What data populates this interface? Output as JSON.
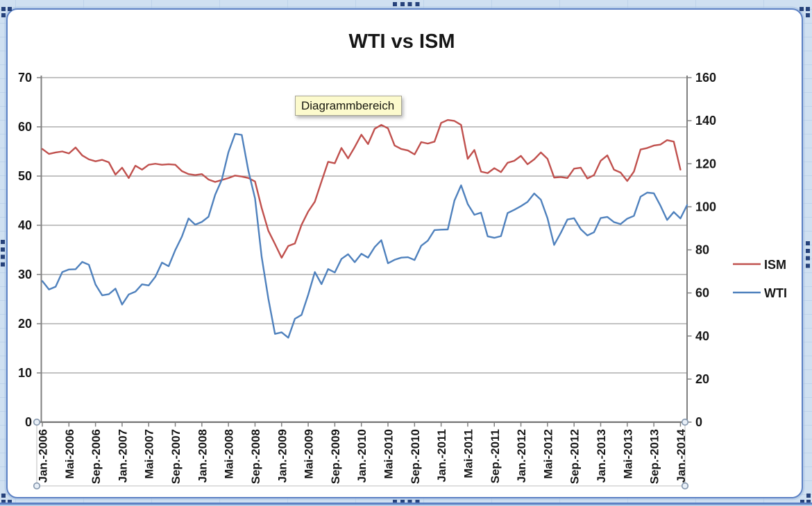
{
  "tooltip": {
    "text": "Diagrammbereich"
  },
  "chart_data": {
    "type": "line",
    "title": "WTI vs ISM",
    "legend": {
      "position": "right",
      "entries": [
        {
          "label": "ISM",
          "color": "#C0504D"
        },
        {
          "label": "WTI",
          "color": "#4F81BD"
        }
      ]
    },
    "left_axis": {
      "min": 0,
      "max": 70,
      "step": 10,
      "tick_labels": [
        "0",
        "10",
        "20",
        "30",
        "40",
        "50",
        "60",
        "70"
      ]
    },
    "right_axis": {
      "min": 0,
      "max": 160,
      "step": 20,
      "tick_labels": [
        "0",
        "20",
        "40",
        "60",
        "80",
        "100",
        "120",
        "140",
        "160"
      ]
    },
    "x_axis": {
      "tick_every_n_points": 4,
      "tick_labels": [
        "Jan.-2006",
        "Mai-2006",
        "Sep.-2006",
        "Jan.-2007",
        "Mai-2007",
        "Sep.-2007",
        "Jan.-2008",
        "Mai-2008",
        "Sep.-2008",
        "Jan.-2009",
        "Mai-2009",
        "Sep.-2009",
        "Jan.-2010",
        "Mai-2010",
        "Sep.-2010",
        "Jan.-2011",
        "Mai-2011",
        "Sep.-2011",
        "Jan.-2012",
        "Mai-2012",
        "Sep.-2012",
        "Jan.-2013",
        "Mai-2013",
        "Sep.-2013",
        "Jan.-2014"
      ]
    },
    "grid": "horizontal",
    "series": [
      {
        "name": "ISM",
        "axis": "left",
        "color": "#C0504D",
        "values": [
          55.5,
          54.5,
          54.8,
          55.0,
          54.6,
          55.8,
          54.2,
          53.4,
          53.0,
          53.3,
          52.8,
          50.3,
          51.7,
          49.6,
          52.1,
          51.3,
          52.3,
          52.5,
          52.3,
          52.4,
          52.3,
          51.0,
          50.4,
          50.2,
          50.4,
          49.3,
          48.8,
          49.2,
          49.6,
          50.1,
          49.9,
          49.6,
          48.9,
          43.5,
          38.9,
          36.2,
          33.4,
          35.8,
          36.3,
          40.1,
          42.8,
          44.8,
          48.9,
          52.9,
          52.6,
          55.7,
          53.6,
          55.9,
          58.4,
          56.5,
          59.6,
          60.4,
          59.7,
          56.2,
          55.5,
          55.2,
          54.4,
          56.9,
          56.6,
          57.0,
          60.8,
          61.4,
          61.2,
          60.4,
          53.5,
          55.3,
          50.9,
          50.6,
          51.6,
          50.8,
          52.7,
          53.1,
          54.1,
          52.4,
          53.4,
          54.8,
          53.5,
          49.7,
          49.8,
          49.6,
          51.5,
          51.7,
          49.5,
          50.2,
          53.1,
          54.2,
          51.3,
          50.7,
          49.0,
          50.9,
          55.4,
          55.7,
          56.2,
          56.4,
          57.3,
          57.0,
          51.3,
          null
        ]
      },
      {
        "name": "WTI",
        "axis": "right",
        "color": "#4F81BD",
        "values": [
          65.5,
          61.6,
          62.9,
          69.7,
          70.9,
          71.0,
          74.4,
          73.1,
          63.9,
          58.9,
          59.4,
          62.0,
          54.6,
          59.3,
          60.6,
          64.0,
          63.5,
          67.5,
          74.1,
          72.4,
          79.9,
          86.2,
          94.6,
          91.7,
          93.0,
          95.4,
          105.6,
          112.6,
          125.4,
          133.9,
          133.4,
          116.7,
          103.9,
          76.7,
          57.4,
          41.0,
          41.7,
          39.2,
          48.0,
          49.8,
          59.2,
          69.7,
          64.1,
          71.1,
          69.5,
          75.8,
          78.0,
          74.3,
          78.2,
          76.4,
          81.3,
          84.5,
          73.8,
          75.4,
          76.4,
          76.6,
          75.3,
          81.9,
          84.3,
          89.2,
          89.4,
          89.5,
          102.9,
          110.0,
          101.3,
          96.3,
          97.3,
          86.3,
          85.6,
          86.4,
          97.1,
          98.6,
          100.3,
          102.3,
          106.2,
          103.3,
          94.7,
          82.3,
          87.9,
          94.1,
          94.7,
          89.6,
          86.7,
          88.2,
          94.8,
          95.3,
          92.9,
          92.0,
          94.5,
          95.8,
          104.7,
          106.6,
          106.3,
          100.5,
          93.9,
          97.6,
          94.6,
          100.8
        ]
      }
    ]
  }
}
